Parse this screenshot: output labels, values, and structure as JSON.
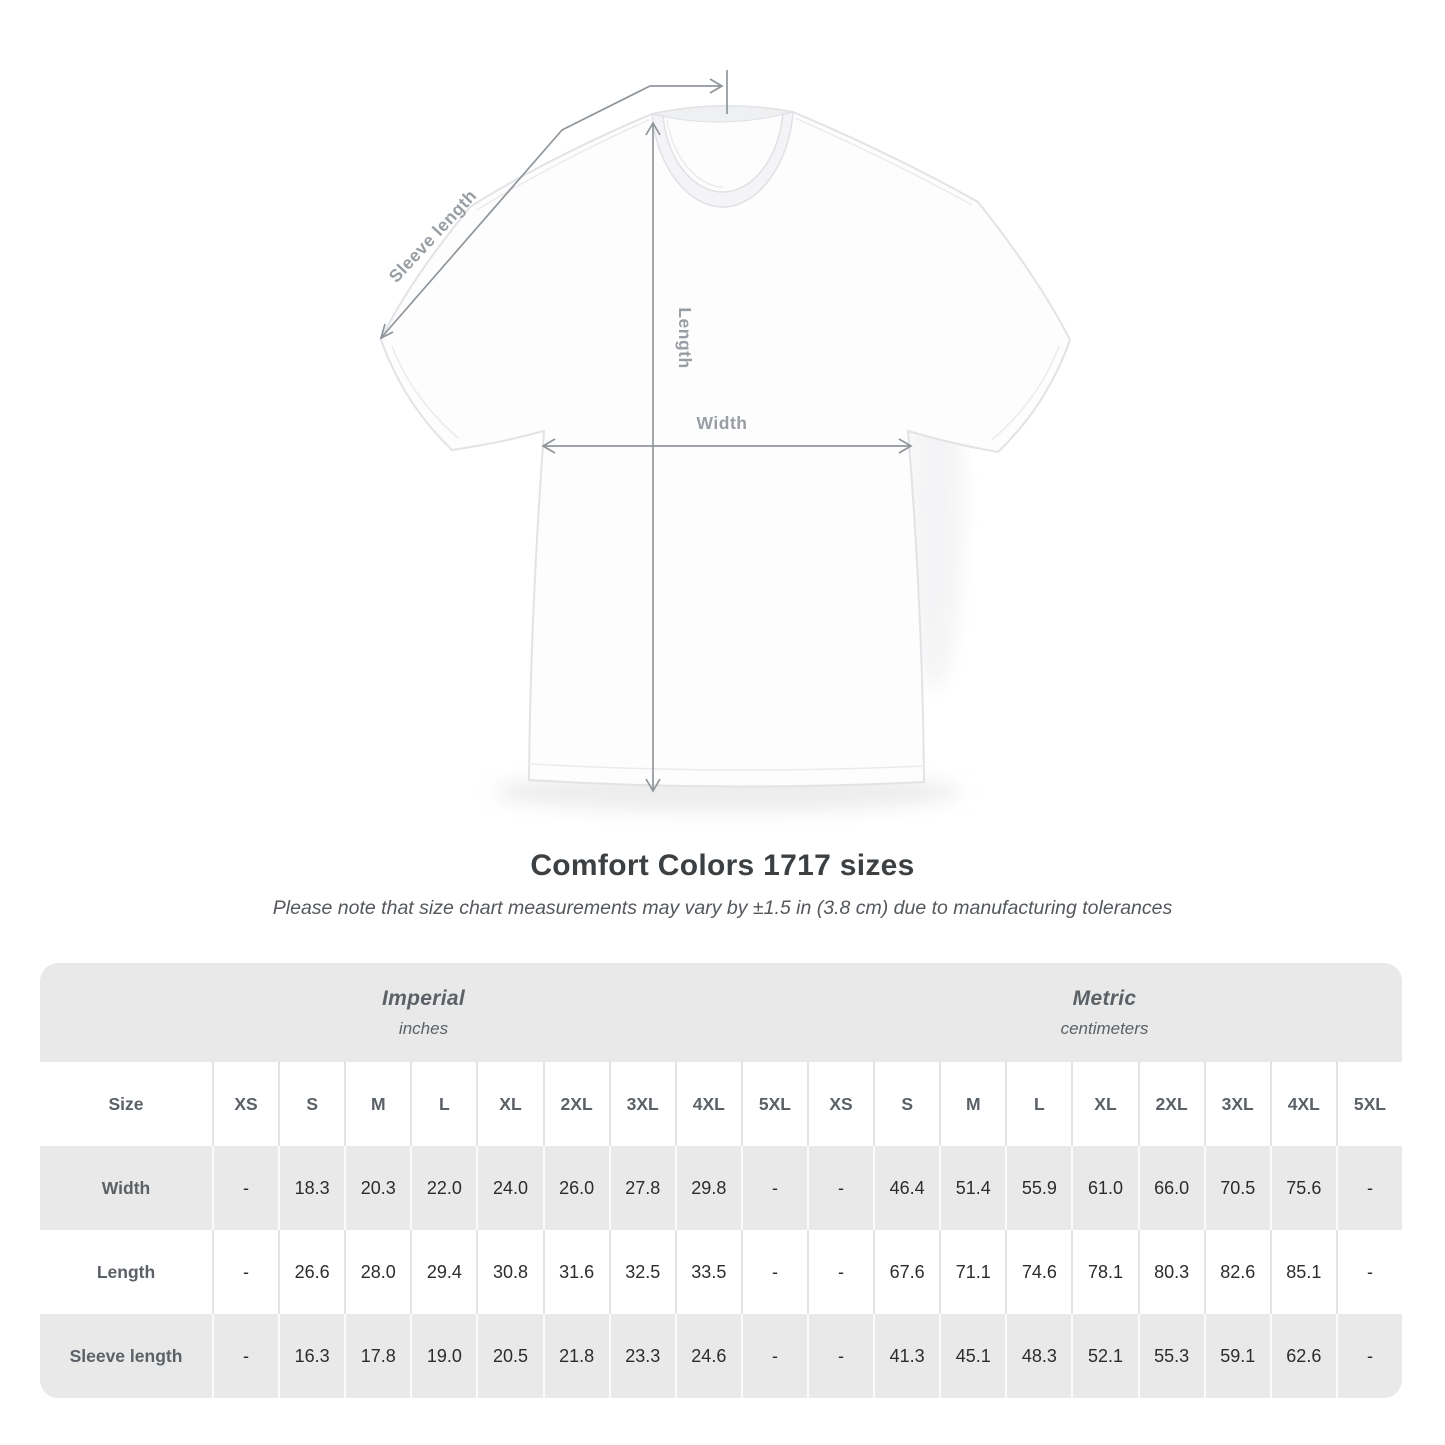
{
  "title": "Comfort Colors 1717 sizes",
  "subtitle": "Please note that size chart measurements may vary by ±1.5 in (3.8 cm) due to manufacturing tolerances",
  "diagram": {
    "labels": {
      "sleeve_length": "Sleeve length",
      "length": "Length",
      "width": "Width"
    }
  },
  "table": {
    "size_col_header": "Size",
    "sections": [
      {
        "title": "Imperial",
        "unit": "inches"
      },
      {
        "title": "Metric",
        "unit": "centimeters"
      }
    ],
    "sizes": [
      "XS",
      "S",
      "M",
      "L",
      "XL",
      "2XL",
      "3XL",
      "4XL",
      "5XL"
    ],
    "rows": [
      {
        "label": "Width",
        "imperial": [
          "-",
          "18.3",
          "20.3",
          "22.0",
          "24.0",
          "26.0",
          "27.8",
          "29.8",
          "-"
        ],
        "metric": [
          "-",
          "46.4",
          "51.4",
          "55.9",
          "61.0",
          "66.0",
          "70.5",
          "75.6",
          "-"
        ]
      },
      {
        "label": "Length",
        "imperial": [
          "-",
          "26.6",
          "28.0",
          "29.4",
          "30.8",
          "31.6",
          "32.5",
          "33.5",
          "-"
        ],
        "metric": [
          "-",
          "67.6",
          "71.1",
          "74.6",
          "78.1",
          "80.3",
          "82.6",
          "85.1",
          "-"
        ]
      },
      {
        "label": "Sleeve length",
        "imperial": [
          "-",
          "16.3",
          "17.8",
          "19.0",
          "20.5",
          "21.8",
          "23.3",
          "24.6",
          "-"
        ],
        "metric": [
          "-",
          "41.3",
          "45.1",
          "48.3",
          "52.1",
          "55.3",
          "59.1",
          "62.6",
          "-"
        ]
      }
    ]
  },
  "colors": {
    "row_stripe": "#e9e9e9",
    "value_text": "#2a2c2e",
    "label_text": "#5b6166",
    "diagram_line": "#8f969b"
  }
}
